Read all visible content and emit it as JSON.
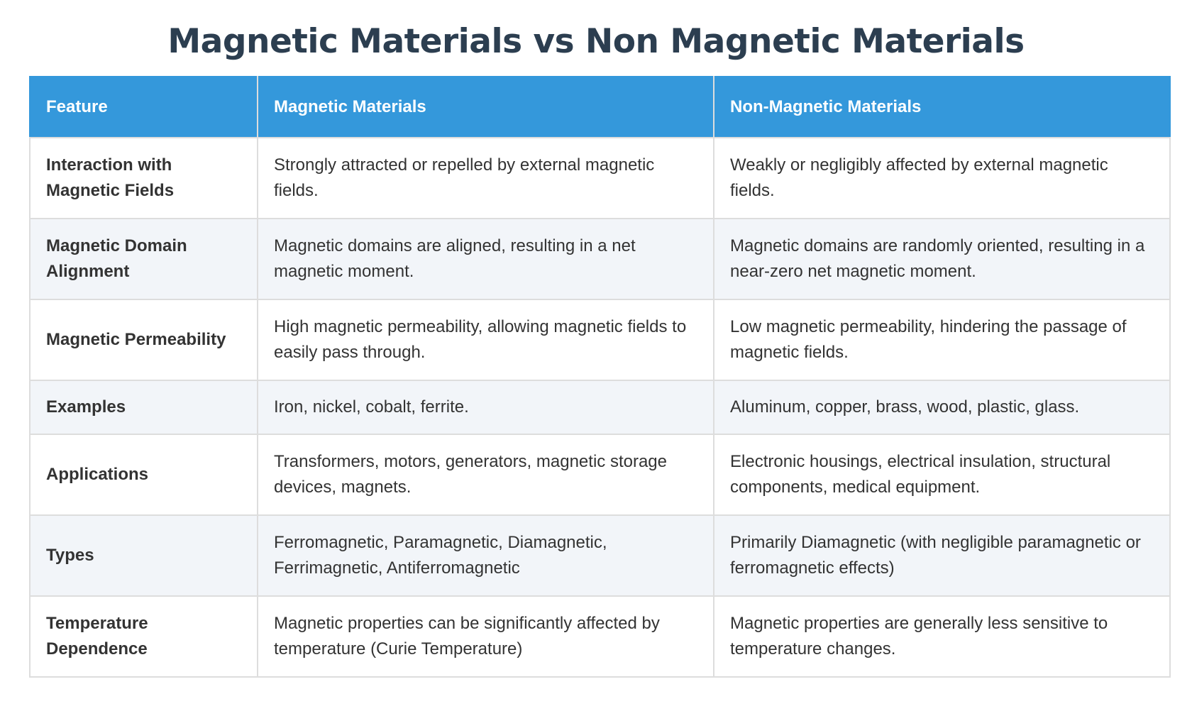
{
  "title": "Magnetic Materials vs Non Magnetic Materials",
  "table": {
    "headers": [
      "Feature",
      "Magnetic Materials",
      "Non-Magnetic Materials"
    ],
    "rows": [
      {
        "feature": "Interaction with Magnetic Fields",
        "magnetic": "Strongly attracted or repelled by external magnetic fields.",
        "non_magnetic": "Weakly or negligibly affected by external magnetic fields."
      },
      {
        "feature": "Magnetic Domain Alignment",
        "magnetic": "Magnetic domains are aligned, resulting in a net magnetic moment.",
        "non_magnetic": "Magnetic domains are randomly oriented, resulting in a near-zero net magnetic moment."
      },
      {
        "feature": "Magnetic Permeability",
        "magnetic": "High magnetic permeability, allowing magnetic fields to easily pass through.",
        "non_magnetic": "Low magnetic permeability, hindering the passage of magnetic fields."
      },
      {
        "feature": "Examples",
        "magnetic": "Iron, nickel, cobalt, ferrite.",
        "non_magnetic": "Aluminum, copper, brass, wood, plastic, glass."
      },
      {
        "feature": "Applications",
        "magnetic": "Transformers, motors, generators, magnetic storage devices, magnets.",
        "non_magnetic": "Electronic housings, electrical insulation, structural components, medical equipment."
      },
      {
        "feature": "Types",
        "magnetic": "Ferromagnetic, Paramagnetic, Diamagnetic, Ferrimagnetic, Antiferromagnetic",
        "non_magnetic": "Primarily Diamagnetic (with negligible paramagnetic or ferromagnetic effects)"
      },
      {
        "feature": "Temperature Dependence",
        "magnetic": "Magnetic properties can be significantly affected by temperature (Curie Temperature)",
        "non_magnetic": "Magnetic properties are generally less sensitive to temperature changes."
      }
    ]
  },
  "colors": {
    "title": "#2c3e50",
    "header_background": "#3498db",
    "header_text": "#ffffff",
    "row_stripe": "#f2f5f9",
    "border": "#dddddd"
  }
}
